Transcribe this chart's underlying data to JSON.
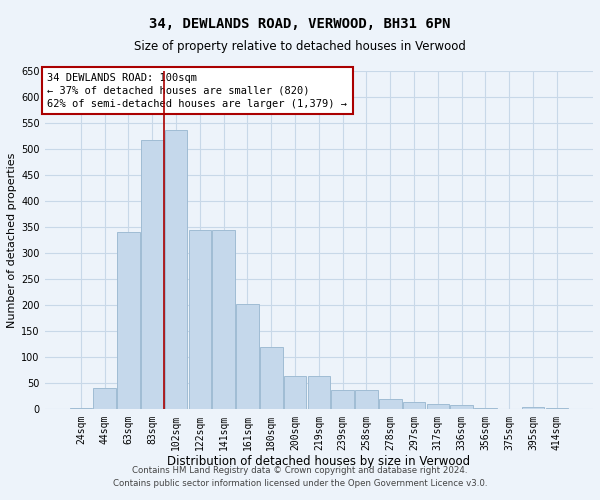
{
  "title1": "34, DEWLANDS ROAD, VERWOOD, BH31 6PN",
  "title2": "Size of property relative to detached houses in Verwood",
  "xlabel": "Distribution of detached houses by size in Verwood",
  "ylabel": "Number of detached properties",
  "footer1": "Contains HM Land Registry data © Crown copyright and database right 2024.",
  "footer2": "Contains public sector information licensed under the Open Government Licence v3.0.",
  "annotation_line1": "34 DEWLANDS ROAD: 100sqm",
  "annotation_line2": "← 37% of detached houses are smaller (820)",
  "annotation_line3": "62% of semi-detached houses are larger (1,379) →",
  "categories": [
    "24sqm",
    "44sqm",
    "63sqm",
    "83sqm",
    "102sqm",
    "122sqm",
    "141sqm",
    "161sqm",
    "180sqm",
    "200sqm",
    "219sqm",
    "239sqm",
    "258sqm",
    "278sqm",
    "297sqm",
    "317sqm",
    "336sqm",
    "356sqm",
    "375sqm",
    "395sqm",
    "414sqm"
  ],
  "values": [
    3,
    42,
    340,
    518,
    536,
    345,
    345,
    203,
    120,
    65,
    65,
    37,
    37,
    20,
    14,
    10,
    8,
    2,
    0,
    4,
    3
  ],
  "bar_color": "#c5d8eb",
  "bar_edge_color": "#a0bcd4",
  "vline_color": "#aa0000",
  "vline_bar_index": 4,
  "annotation_box_edgecolor": "#aa0000",
  "grid_color": "#c8d8e8",
  "background_color": "#edf3fa",
  "ylim": [
    0,
    650
  ],
  "yticks": [
    0,
    50,
    100,
    150,
    200,
    250,
    300,
    350,
    400,
    450,
    500,
    550,
    600,
    650
  ],
  "title1_fontsize": 10,
  "title2_fontsize": 8.5,
  "ylabel_fontsize": 8,
  "xlabel_fontsize": 8.5,
  "tick_fontsize": 7,
  "footer_fontsize": 6.2,
  "ann_fontsize": 7.5
}
